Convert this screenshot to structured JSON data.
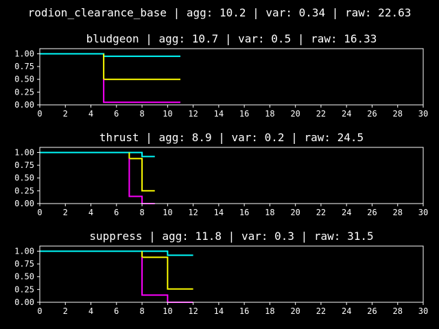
{
  "suptitle": "rodion_clearance_base | agg: 10.2 | var: 0.34 | raw: 22.63",
  "chart_data": [
    {
      "type": "line",
      "step": "post",
      "title": "bludgeon | agg: 10.7 | var: 0.5 | raw: 16.33",
      "xlim": [
        0,
        30
      ],
      "ylim": [
        0,
        1.1
      ],
      "xticks": [
        "0",
        "2",
        "4",
        "6",
        "8",
        "10",
        "12",
        "14",
        "16",
        "18",
        "20",
        "22",
        "24",
        "26",
        "28",
        "30"
      ],
      "yticks": [
        "0.00",
        "0.25",
        "0.50",
        "0.75",
        "1.00"
      ],
      "series": [
        {
          "color": "#00ffff",
          "points": [
            [
              0,
              1.0
            ],
            [
              5,
              1.0
            ],
            [
              5,
              0.95
            ],
            [
              11,
              0.95
            ]
          ]
        },
        {
          "color": "#ffff00",
          "points": [
            [
              5,
              1.0
            ],
            [
              5,
              0.5
            ],
            [
              11,
              0.5
            ]
          ]
        },
        {
          "color": "#ff00ff",
          "points": [
            [
              5,
              0.5
            ],
            [
              5,
              0.05
            ],
            [
              11,
              0.05
            ]
          ]
        }
      ]
    },
    {
      "type": "line",
      "step": "post",
      "title": "thrust | agg: 8.9 | var: 0.2 | raw: 24.5",
      "xlim": [
        0,
        30
      ],
      "ylim": [
        0,
        1.1
      ],
      "xticks": [
        "0",
        "2",
        "4",
        "6",
        "8",
        "10",
        "12",
        "14",
        "16",
        "18",
        "20",
        "22",
        "24",
        "26",
        "28",
        "30"
      ],
      "yticks": [
        "0.00",
        "0.25",
        "0.50",
        "0.75",
        "1.00"
      ],
      "series": [
        {
          "color": "#00ffff",
          "points": [
            [
              0,
              1.0
            ],
            [
              8,
              1.0
            ],
            [
              8,
              0.92
            ],
            [
              9,
              0.92
            ]
          ]
        },
        {
          "color": "#ffff00",
          "points": [
            [
              7,
              1.0
            ],
            [
              7,
              0.88
            ],
            [
              8,
              0.88
            ],
            [
              8,
              0.25
            ],
            [
              9,
              0.25
            ]
          ]
        },
        {
          "color": "#ff00ff",
          "points": [
            [
              7,
              0.88
            ],
            [
              7,
              0.14
            ],
            [
              8,
              0.14
            ],
            [
              8,
              0.0
            ],
            [
              9,
              0.0
            ]
          ]
        }
      ]
    },
    {
      "type": "line",
      "step": "post",
      "title": "suppress | agg: 11.8 | var: 0.3 | raw: 31.5",
      "xlim": [
        0,
        30
      ],
      "ylim": [
        0,
        1.1
      ],
      "xticks": [
        "0",
        "2",
        "4",
        "6",
        "8",
        "10",
        "12",
        "14",
        "16",
        "18",
        "20",
        "22",
        "24",
        "26",
        "28",
        "30"
      ],
      "yticks": [
        "0.00",
        "0.25",
        "0.50",
        "0.75",
        "1.00"
      ],
      "series": [
        {
          "color": "#00ffff",
          "points": [
            [
              0,
              1.0
            ],
            [
              10,
              1.0
            ],
            [
              10,
              0.92
            ],
            [
              12,
              0.92
            ]
          ]
        },
        {
          "color": "#ffff00",
          "points": [
            [
              8,
              1.0
            ],
            [
              8,
              0.88
            ],
            [
              10,
              0.88
            ],
            [
              10,
              0.26
            ],
            [
              12,
              0.26
            ]
          ]
        },
        {
          "color": "#ff00ff",
          "points": [
            [
              8,
              0.88
            ],
            [
              8,
              0.14
            ],
            [
              10,
              0.14
            ],
            [
              10,
              0.0
            ],
            [
              12,
              0.0
            ]
          ]
        }
      ]
    }
  ]
}
